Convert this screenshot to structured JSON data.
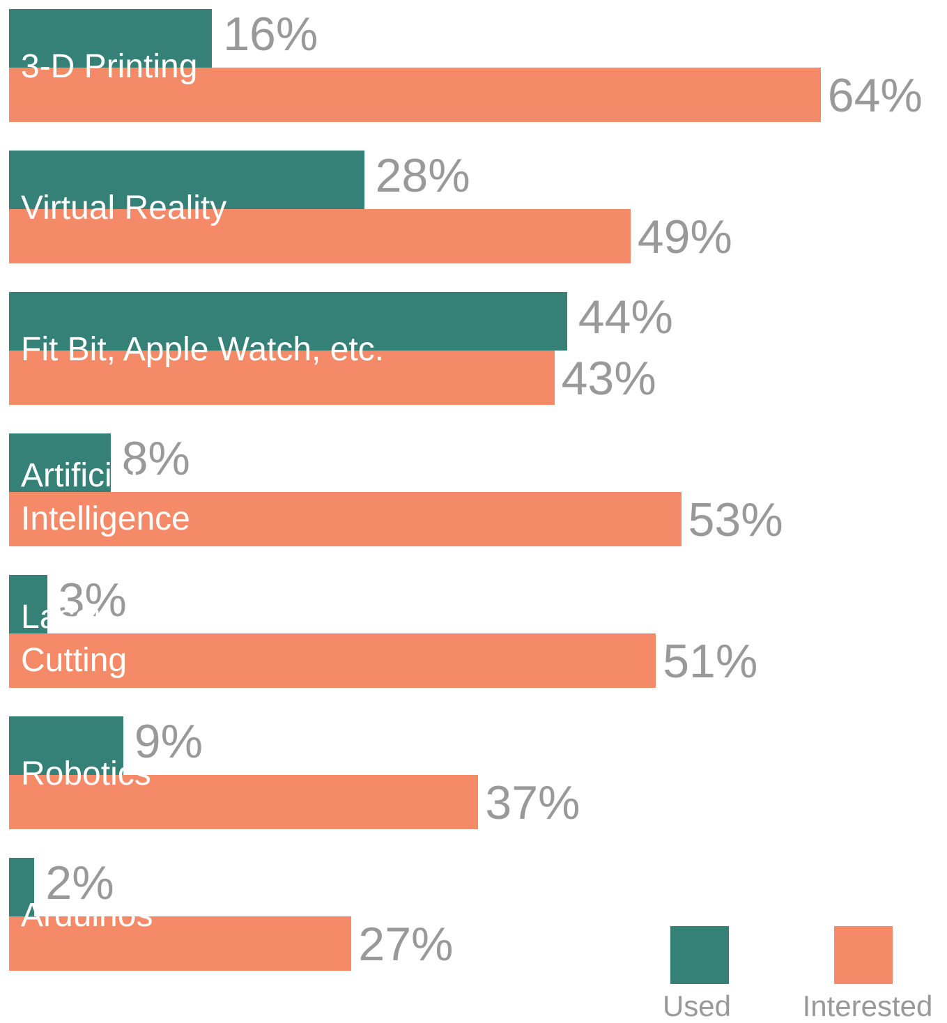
{
  "chart_data": {
    "type": "bar",
    "orientation": "horizontal",
    "categories": [
      "3-D Printing",
      "Virtual Reality",
      "Fit Bit, Apple Watch, etc.",
      "Artificial Intelligence",
      "Laser Cutting",
      "Robotics",
      "Arduinos"
    ],
    "series": [
      {
        "name": "Used",
        "color": "#358177",
        "values": [
          16,
          28,
          44,
          8,
          3,
          9,
          2
        ],
        "value_labels": [
          "16%",
          "28%",
          "44%",
          "8%",
          "3%",
          "9%",
          "2%"
        ]
      },
      {
        "name": "Interested",
        "color": "#f48a67",
        "values": [
          64,
          49,
          43,
          53,
          51,
          37,
          27
        ],
        "value_labels": [
          "64%",
          "49%",
          "43%",
          "53%",
          "51%",
          "37%",
          "27%"
        ]
      }
    ],
    "legend": "bottom-right"
  }
}
